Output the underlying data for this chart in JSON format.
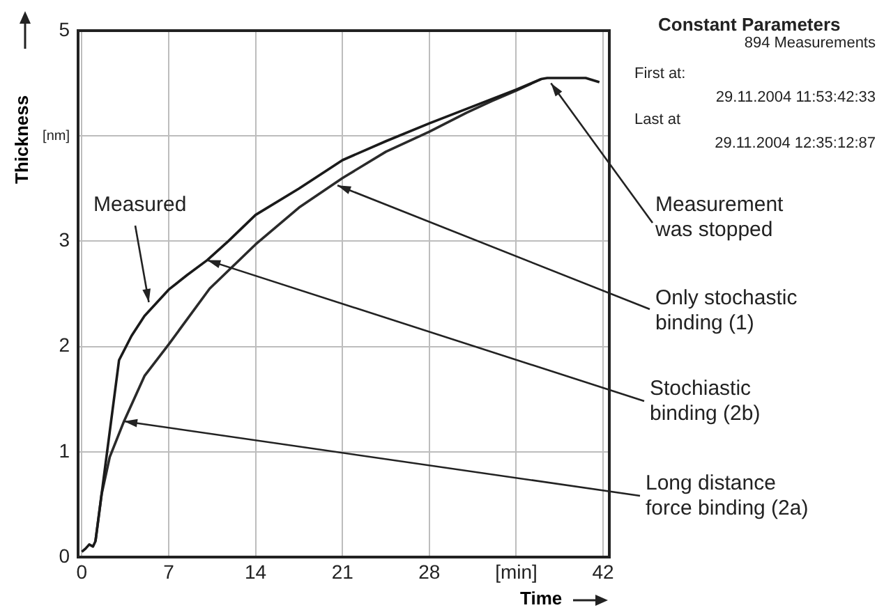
{
  "chart_data": {
    "type": "line",
    "xlabel": "Time",
    "ylabel": "Thickness",
    "xlim": [
      -0.3,
      42.5
    ],
    "xticks": [
      0,
      7,
      14,
      21,
      28,
      {
        "value": 35,
        "label": "[min]"
      },
      42
    ],
    "ylim": [
      0,
      5
    ],
    "yticks": [
      0,
      1,
      2,
      3,
      {
        "value": 4,
        "label": "[nm]"
      },
      5
    ],
    "grid": true,
    "legend": false,
    "marker": "none",
    "line_style": "solid",
    "series": [
      {
        "color": "#1a1a1a",
        "x": [
          0,
          0.3,
          0.6,
          0.9,
          1.1,
          3.0,
          4.0,
          5.05,
          7,
          8.5,
          10.1,
          11.8,
          14,
          17.5,
          21,
          24.5,
          28,
          31.5,
          35,
          37,
          37.5,
          40.6,
          41.7
        ],
        "values": [
          0.05,
          0.08,
          0.12,
          0.1,
          0.15,
          1.87,
          2.1,
          2.29,
          2.54,
          2.68,
          2.82,
          3.0,
          3.25,
          3.5,
          3.77,
          3.95,
          4.12,
          4.28,
          4.44,
          4.54,
          4.55,
          4.55,
          4.51
        ]
      },
      {
        "color": "#2a2a2a",
        "x": [
          1.1,
          1.6,
          2.25,
          3.4,
          5.05,
          7,
          10.3,
          14,
          17.5,
          21,
          24.5,
          28,
          31,
          33,
          35,
          37
        ],
        "values": [
          0.15,
          0.6,
          0.95,
          1.29,
          1.72,
          2.02,
          2.55,
          2.97,
          3.32,
          3.6,
          3.85,
          4.04,
          4.22,
          4.33,
          4.43,
          4.54
        ]
      }
    ],
    "annotations": [
      {
        "text": "Measured",
        "x": 5.4,
        "y": 2.42
      },
      {
        "text": "Measurement\nwas stopped",
        "x": 37.8,
        "y": 4.5
      },
      {
        "text": "Only stochastic\nbinding (1)",
        "x": 20.6,
        "y": 3.53
      },
      {
        "text": "Stochiastic\nbinding (2b)",
        "x": 10.1,
        "y": 2.82
      },
      {
        "text": "Long distance\nforce binding (2a)",
        "x": 3.4,
        "y": 1.29
      },
      "Constant Parameters",
      "894 Measurements",
      "First at:",
      "29.11.2004 11:53:42:33",
      "Last at",
      "29.11.2004 12:35:12:87"
    ]
  }
}
